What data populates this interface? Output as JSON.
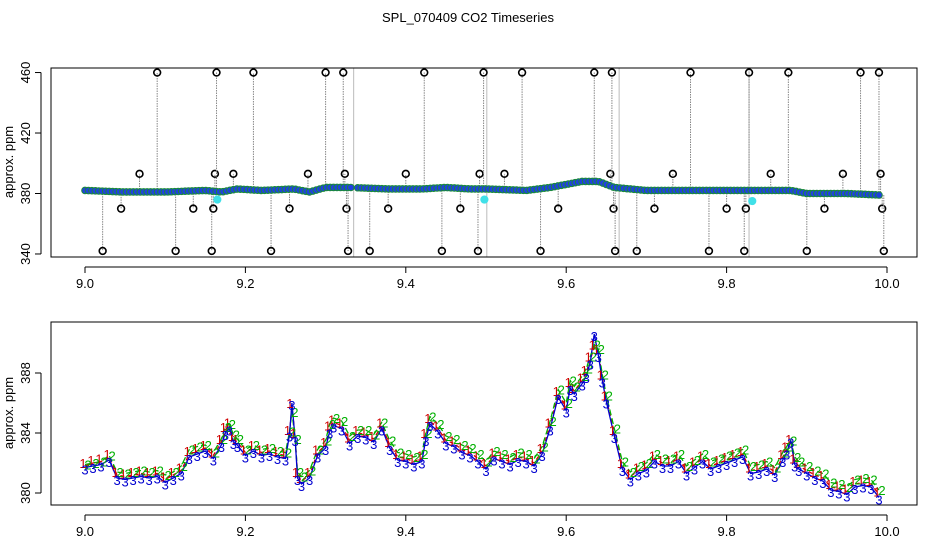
{
  "title": "SPL_070409  CO2 Timeseries",
  "colors": {
    "axis": "#000000",
    "spike": "#888888",
    "point_fill": "#2040e0",
    "point_edge": "#1a8a3a",
    "series_1": "#d00000",
    "series_2": "#00b000",
    "series_3": "#0000d0",
    "cyan_point": "#40e0e8"
  },
  "chart_data": [
    {
      "type": "scatter",
      "name": "top",
      "xlabel": "",
      "ylabel": "approx. ppm",
      "xlim": [
        9.0,
        10.0
      ],
      "ylim": [
        338,
        463
      ],
      "xticks": [
        9.0,
        9.2,
        9.4,
        9.6,
        9.8,
        10.0
      ],
      "xtick_labels": [
        "9.0",
        "9.2",
        "9.4",
        "9.6",
        "9.8",
        "10.0"
      ],
      "yticks": [
        340,
        380,
        420,
        460
      ],
      "ytick_labels": [
        "340",
        "380",
        "420",
        "460"
      ],
      "baseline": [
        [
          9.0,
          382
        ],
        [
          9.05,
          381
        ],
        [
          9.1,
          381
        ],
        [
          9.15,
          382
        ],
        [
          9.17,
          381
        ],
        [
          9.19,
          383
        ],
        [
          9.22,
          382
        ],
        [
          9.26,
          383
        ],
        [
          9.28,
          381
        ],
        [
          9.3,
          384
        ],
        [
          9.33,
          384
        ],
        [
          9.38,
          383
        ],
        [
          9.42,
          383
        ],
        [
          9.45,
          384
        ],
        [
          9.48,
          383
        ],
        [
          9.5,
          383
        ],
        [
          9.55,
          382
        ],
        [
          9.58,
          384
        ],
        [
          9.62,
          388
        ],
        [
          9.64,
          388
        ],
        [
          9.66,
          384
        ],
        [
          9.7,
          382
        ],
        [
          9.75,
          382
        ],
        [
          9.78,
          382
        ],
        [
          9.8,
          382
        ],
        [
          9.82,
          382
        ],
        [
          9.85,
          382
        ],
        [
          9.88,
          382
        ],
        [
          9.9,
          380
        ],
        [
          9.95,
          380
        ],
        [
          9.99,
          379
        ]
      ],
      "gaps": [
        [
          9.333,
          9.337
        ],
        [
          9.5,
          9.502
        ],
        [
          9.665,
          9.667
        ],
        [
          9.827,
          9.829
        ]
      ],
      "spikes": [
        {
          "x": 9.022,
          "y": 342
        },
        {
          "x": 9.045,
          "y": 370
        },
        {
          "x": 9.068,
          "y": 393
        },
        {
          "x": 9.09,
          "y": 460
        },
        {
          "x": 9.113,
          "y": 342
        },
        {
          "x": 9.135,
          "y": 370
        },
        {
          "x": 9.158,
          "y": 342
        },
        {
          "x": 9.16,
          "y": 370
        },
        {
          "x": 9.162,
          "y": 393
        },
        {
          "x": 9.164,
          "y": 460
        },
        {
          "x": 9.185,
          "y": 393
        },
        {
          "x": 9.21,
          "y": 460
        },
        {
          "x": 9.232,
          "y": 342
        },
        {
          "x": 9.255,
          "y": 370
        },
        {
          "x": 9.278,
          "y": 393
        },
        {
          "x": 9.3,
          "y": 460
        },
        {
          "x": 9.322,
          "y": 460
        },
        {
          "x": 9.324,
          "y": 393
        },
        {
          "x": 9.326,
          "y": 370
        },
        {
          "x": 9.328,
          "y": 342
        },
        {
          "x": 9.355,
          "y": 342
        },
        {
          "x": 9.378,
          "y": 370
        },
        {
          "x": 9.4,
          "y": 393
        },
        {
          "x": 9.423,
          "y": 460
        },
        {
          "x": 9.445,
          "y": 342
        },
        {
          "x": 9.468,
          "y": 370
        },
        {
          "x": 9.49,
          "y": 342
        },
        {
          "x": 9.492,
          "y": 393
        },
        {
          "x": 9.497,
          "y": 460
        },
        {
          "x": 9.523,
          "y": 393
        },
        {
          "x": 9.545,
          "y": 460
        },
        {
          "x": 9.568,
          "y": 342
        },
        {
          "x": 9.59,
          "y": 370
        },
        {
          "x": 9.635,
          "y": 460
        },
        {
          "x": 9.655,
          "y": 393
        },
        {
          "x": 9.657,
          "y": 460
        },
        {
          "x": 9.659,
          "y": 370
        },
        {
          "x": 9.661,
          "y": 342
        },
        {
          "x": 9.688,
          "y": 342
        },
        {
          "x": 9.71,
          "y": 370
        },
        {
          "x": 9.733,
          "y": 393
        },
        {
          "x": 9.755,
          "y": 460
        },
        {
          "x": 9.778,
          "y": 342
        },
        {
          "x": 9.8,
          "y": 370
        },
        {
          "x": 9.822,
          "y": 342
        },
        {
          "x": 9.824,
          "y": 370
        },
        {
          "x": 9.828,
          "y": 460
        },
        {
          "x": 9.855,
          "y": 393
        },
        {
          "x": 9.877,
          "y": 460
        },
        {
          "x": 9.9,
          "y": 342
        },
        {
          "x": 9.922,
          "y": 370
        },
        {
          "x": 9.945,
          "y": 393
        },
        {
          "x": 9.967,
          "y": 460
        },
        {
          "x": 9.99,
          "y": 460
        },
        {
          "x": 9.992,
          "y": 393
        },
        {
          "x": 9.994,
          "y": 370
        },
        {
          "x": 9.996,
          "y": 342
        }
      ],
      "cyan_points": [
        {
          "x": 9.165,
          "y": 376
        },
        {
          "x": 9.498,
          "y": 376
        },
        {
          "x": 9.832,
          "y": 375
        }
      ]
    },
    {
      "type": "line",
      "name": "bottom",
      "xlabel": "",
      "ylabel": "approx. ppm",
      "xlim": [
        9.0,
        10.0
      ],
      "ylim": [
        379.2,
        391.4
      ],
      "xticks": [
        9.0,
        9.2,
        9.4,
        9.6,
        9.8,
        10.0
      ],
      "xtick_labels": [
        "9.0",
        "9.2",
        "9.4",
        "9.6",
        "9.8",
        "10.0"
      ],
      "yticks": [
        380,
        384,
        388
      ],
      "ytick_labels": [
        "380",
        "384",
        "388"
      ],
      "x": [
        9.0,
        9.01,
        9.02,
        9.03,
        9.04,
        9.05,
        9.06,
        9.07,
        9.08,
        9.09,
        9.1,
        9.11,
        9.12,
        9.13,
        9.14,
        9.15,
        9.16,
        9.17,
        9.175,
        9.18,
        9.185,
        9.19,
        9.2,
        9.21,
        9.22,
        9.23,
        9.24,
        9.25,
        9.255,
        9.258,
        9.262,
        9.265,
        9.27,
        9.28,
        9.29,
        9.3,
        9.305,
        9.31,
        9.32,
        9.33,
        9.34,
        9.35,
        9.36,
        9.37,
        9.38,
        9.39,
        9.4,
        9.41,
        9.42,
        9.425,
        9.43,
        9.44,
        9.45,
        9.46,
        9.47,
        9.48,
        9.49,
        9.5,
        9.51,
        9.52,
        9.53,
        9.54,
        9.55,
        9.56,
        9.57,
        9.58,
        9.59,
        9.6,
        9.605,
        9.61,
        9.62,
        9.625,
        9.63,
        9.635,
        9.64,
        9.645,
        9.65,
        9.66,
        9.67,
        9.68,
        9.69,
        9.7,
        9.71,
        9.72,
        9.73,
        9.74,
        9.75,
        9.76,
        9.77,
        9.78,
        9.79,
        9.8,
        9.81,
        9.82,
        9.83,
        9.84,
        9.85,
        9.86,
        9.87,
        9.875,
        9.88,
        9.885,
        9.89,
        9.9,
        9.91,
        9.92,
        9.93,
        9.94,
        9.95,
        9.96,
        9.97,
        9.98,
        9.99
      ],
      "series": [
        {
          "name": "1",
          "values": [
            381.8,
            382,
            382.1,
            382.4,
            381.2,
            381.1,
            381.2,
            381.3,
            381.2,
            381.3,
            380.9,
            381.2,
            381.5,
            382.6,
            382.8,
            383.0,
            382.5,
            383.4,
            384.2,
            384.5,
            383.6,
            383.4,
            382.7,
            383.0,
            382.7,
            382.8,
            382.6,
            382.5,
            384.0,
            385.8,
            383.8,
            381.2,
            380.8,
            381.2,
            382.7,
            383.2,
            384.3,
            384.7,
            384.5,
            383.5,
            384.0,
            383.9,
            383.6,
            384.5,
            383.2,
            382.4,
            382.3,
            382.1,
            382.3,
            383.8,
            384.8,
            384.3,
            383.5,
            383.3,
            382.9,
            382.7,
            382.3,
            381.8,
            382.5,
            382.3,
            382.1,
            382.4,
            382.3,
            382.0,
            382.8,
            384.5,
            386.6,
            385.7,
            387.2,
            386.8,
            387.5,
            388.0,
            388.9,
            389.7,
            389.4,
            387.7,
            386.3,
            384.0,
            381.8,
            381.1,
            381.5,
            381.7,
            382.3,
            382.0,
            382.0,
            382.3,
            381.5,
            381.9,
            382.3,
            381.8,
            382.0,
            382.2,
            382.4,
            382.6,
            381.5,
            381.6,
            381.8,
            381.4,
            382.4,
            382.9,
            383.4,
            382.1,
            381.8,
            381.5,
            381.2,
            381.0,
            380.4,
            380.3,
            380.1,
            380.6,
            380.7,
            380.6,
            379.9
          ]
        },
        {
          "name": "2",
          "values": [
            381.9,
            382.0,
            382.1,
            382.5,
            381.4,
            381.3,
            381.4,
            381.5,
            381.4,
            381.5,
            381.2,
            381.4,
            381.8,
            382.9,
            383.1,
            383.2,
            382.7,
            383.6,
            384.4,
            384.6,
            383.9,
            383.6,
            382.9,
            383.2,
            382.9,
            383.0,
            382.8,
            382.7,
            384.1,
            385.4,
            383.6,
            381.4,
            381.1,
            381.5,
            382.9,
            383.5,
            384.6,
            385.0,
            384.8,
            383.8,
            384.2,
            384.2,
            383.9,
            384.7,
            383.5,
            382.7,
            382.6,
            382.4,
            382.6,
            384.0,
            385.1,
            384.6,
            383.8,
            383.6,
            383.2,
            383.0,
            382.6,
            382.1,
            382.8,
            382.6,
            382.4,
            382.7,
            382.6,
            382.3,
            383.1,
            384.8,
            386.9,
            386.0,
            387.5,
            387.1,
            387.8,
            388.3,
            389.1,
            389.9,
            389.6,
            387.9,
            386.5,
            384.3,
            382.1,
            381.4,
            381.8,
            382.0,
            382.6,
            382.3,
            382.3,
            382.6,
            381.8,
            382.2,
            382.6,
            382.1,
            382.3,
            382.5,
            382.7,
            382.9,
            381.8,
            381.9,
            382.1,
            381.7,
            382.7,
            383.1,
            383.5,
            382.4,
            382.1,
            381.8,
            381.5,
            381.3,
            380.7,
            380.6,
            380.4,
            380.9,
            381.0,
            380.9,
            380.2
          ]
        },
        {
          "name": "3",
          "values": [
            381.7,
            381.8,
            381.9,
            382.2,
            381.0,
            380.9,
            381.0,
            381.1,
            381.0,
            381.1,
            380.7,
            381.0,
            381.3,
            382.4,
            382.6,
            382.8,
            382.3,
            383.2,
            384.0,
            384.3,
            383.4,
            383.2,
            382.5,
            382.8,
            382.5,
            382.6,
            382.4,
            382.3,
            383.9,
            386.0,
            383.6,
            381.0,
            380.6,
            381.0,
            382.5,
            383.0,
            384.1,
            384.5,
            384.3,
            383.3,
            383.8,
            383.7,
            383.4,
            384.3,
            383.0,
            382.2,
            382.1,
            381.9,
            382.1,
            383.6,
            384.6,
            384.1,
            383.3,
            383.1,
            382.7,
            382.5,
            382.1,
            381.6,
            382.3,
            382.1,
            381.9,
            382.2,
            382.1,
            381.8,
            382.6,
            384.3,
            386.4,
            385.5,
            387.0,
            386.6,
            387.3,
            387.8,
            388.7,
            390.6,
            389.2,
            387.5,
            386.1,
            383.8,
            381.6,
            380.9,
            381.3,
            381.5,
            382.1,
            381.8,
            381.8,
            382.1,
            381.3,
            381.7,
            382.1,
            381.6,
            381.8,
            382.0,
            382.2,
            382.4,
            381.3,
            381.4,
            381.6,
            381.2,
            382.2,
            382.7,
            383.5,
            381.9,
            381.6,
            381.3,
            381.0,
            380.8,
            380.2,
            380.1,
            379.9,
            380.4,
            380.5,
            380.4,
            379.7
          ]
        }
      ]
    }
  ]
}
